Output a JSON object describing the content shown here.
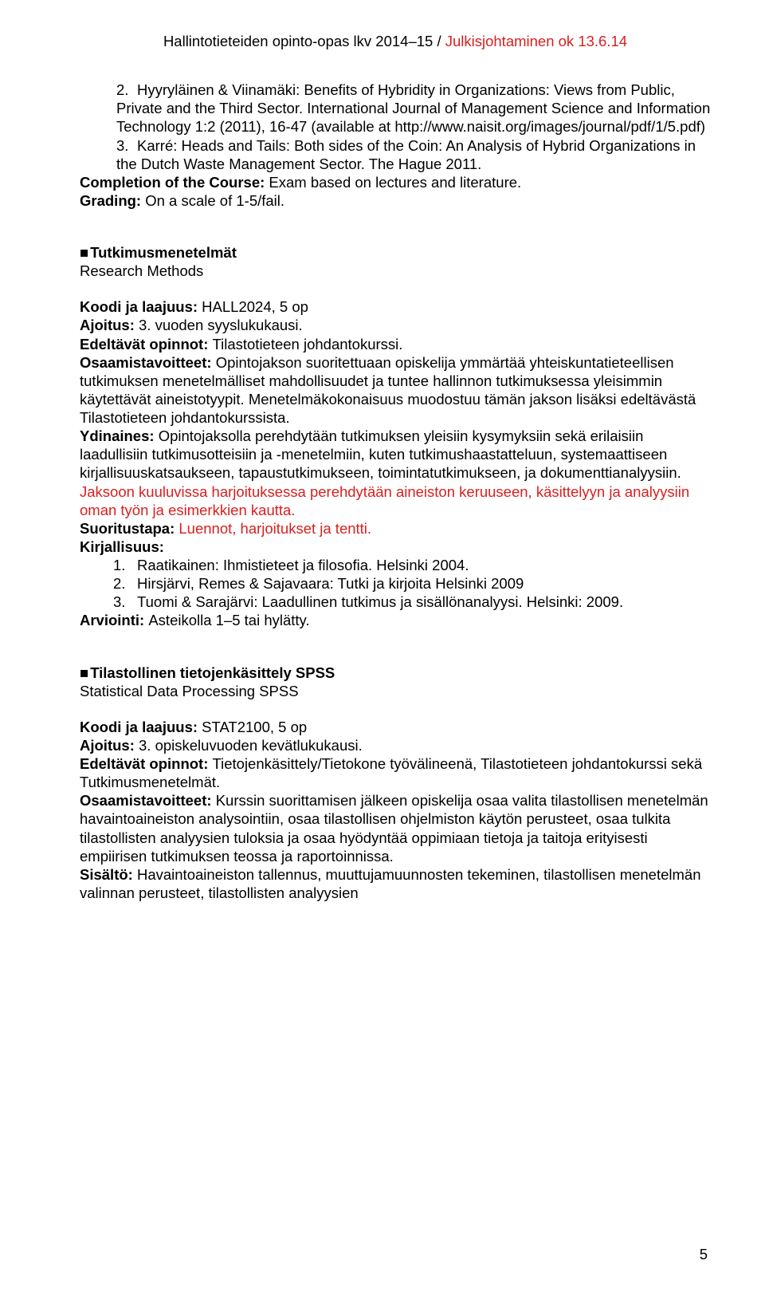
{
  "header": {
    "black": "Hallintotieteiden opinto-opas lkv 2014–15 / ",
    "red": "Julkisjohtaminen ok 13.6.14"
  },
  "top": {
    "item2_num": "2.",
    "item2_text_a": "Hyyryläinen & Viinamäki: Benefits of Hybridity in Organizations: Views from Public, Private and the Third Sector. ",
    "item2_text_b": "International Journal of Management Science and Information Technology 1:2 (2011), 16-47 (available at http://www.naisit.org/images/journal/pdf/1/5.pdf)",
    "item3_num": "3.",
    "item3_text": "Karré: Heads and Tails: Both sides of the Coin: An Analysis of Hybrid Organizations in the Dutch Waste Management Sector. The Hague 2011.",
    "completion_label": "Completion of the Course: ",
    "completion_text": "Exam based on lectures and literature.",
    "grading_label": "Grading: ",
    "grading_text": "On a scale of 1-5/fail."
  },
  "sec1": {
    "square": "■",
    "title": "Tutkimusmenetelmät",
    "subtitle": "Research Methods",
    "koodi_label": "Koodi ja laajuus: ",
    "koodi_text": "HALL2024, 5 op",
    "ajoitus_label": "Ajoitus: ",
    "ajoitus_text": "3. vuoden syyslukukausi.",
    "edeltavat_label": "Edeltävät opinnot: ",
    "edeltavat_text": "Tilastotieteen johdantokurssi.",
    "osaamis_label": "Osaamistavoitteet: ",
    "osaamis_text": "Opintojakson suoritettuaan opiskelija ymmärtää yhteiskuntatieteellisen tutkimuksen menetelmälliset mahdollisuudet ja tuntee hallinnon tutkimuksessa yleisimmin käytettävät aineistotyypit. Menetelmäkokonaisuus muodostuu tämän jakson lisäksi edeltävästä Tilastotieteen johdantokurssista.",
    "ydin_label": "Ydinaines: ",
    "ydin_text": "Opintojaksolla perehdytään tutkimuksen yleisiin kysymyksiin sekä erilaisiin laadullisiin tutkimusotteisiin ja -menetelmiin, kuten tutkimushaastatteluun, systemaattiseen kirjallisuuskatsaukseen, tapaustutkimukseen, toimintatutkimukseen, ja dokumenttianalyysiin. ",
    "ydin_red": "Jaksoon kuuluvissa harjoituksessa perehdytään aineiston keruuseen, käsittelyyn ja analyysiin oman työn ja esimerkkien kautta.",
    "suoritus_label": "Suoritustapa: ",
    "suoritus_text": "Luennot, harjoitukset ja tentti.",
    "kirj_label": "Kirjallisuus:",
    "li1_num": "1.",
    "li1_text": "Raatikainen: Ihmistieteet ja filosofia. Helsinki 2004.",
    "li2_num": "2.",
    "li2_text": "Hirsjärvi, Remes & Sajavaara: Tutki ja kirjoita Helsinki 2009",
    "li3_num": "3.",
    "li3_text": "Tuomi & Sarajärvi: Laadullinen tutkimus ja sisällönanalyysi. Helsinki: 2009.",
    "arv_label": "Arviointi: ",
    "arv_text": "Asteikolla 1–5 tai hylätty."
  },
  "sec2": {
    "square": "■",
    "title": "Tilastollinen tietojenkäsittely SPSS",
    "subtitle": "Statistical Data Processing SPSS",
    "koodi_label": "Koodi ja laajuus: ",
    "koodi_text": "STAT2100, 5 op",
    "ajoitus_label": "Ajoitus: ",
    "ajoitus_text": "3. opiskeluvuoden kevätlukukausi.",
    "edeltavat_label": "Edeltävät opinnot: ",
    "edeltavat_text": "Tietojenkäsittely/Tietokone työvälineenä, Tilastotieteen johdantokurssi sekä Tutkimusmenetelmät.",
    "osaamis_label": "Osaamistavoitteet: ",
    "osaamis_text": "Kurssin suorittamisen jälkeen opiskelija osaa valita tilastollisen menetelmän havaintoaineiston analysointiin, osaa tilastollisen ohjelmiston käytön perusteet, osaa tulkita tilastollisten analyysien tuloksia ja osaa hyödyntää oppimiaan tietoja ja taitoja erityisesti empiirisen tutkimuksen teossa ja raportoinnissa.",
    "sisalto_label": "Sisältö: ",
    "sisalto_text": "Havaintoaineiston tallennus, muuttujamuunnosten tekeminen, tilastollisen menetelmän valinnan perusteet, tilastollisten analyysien"
  },
  "pagenum": "5"
}
